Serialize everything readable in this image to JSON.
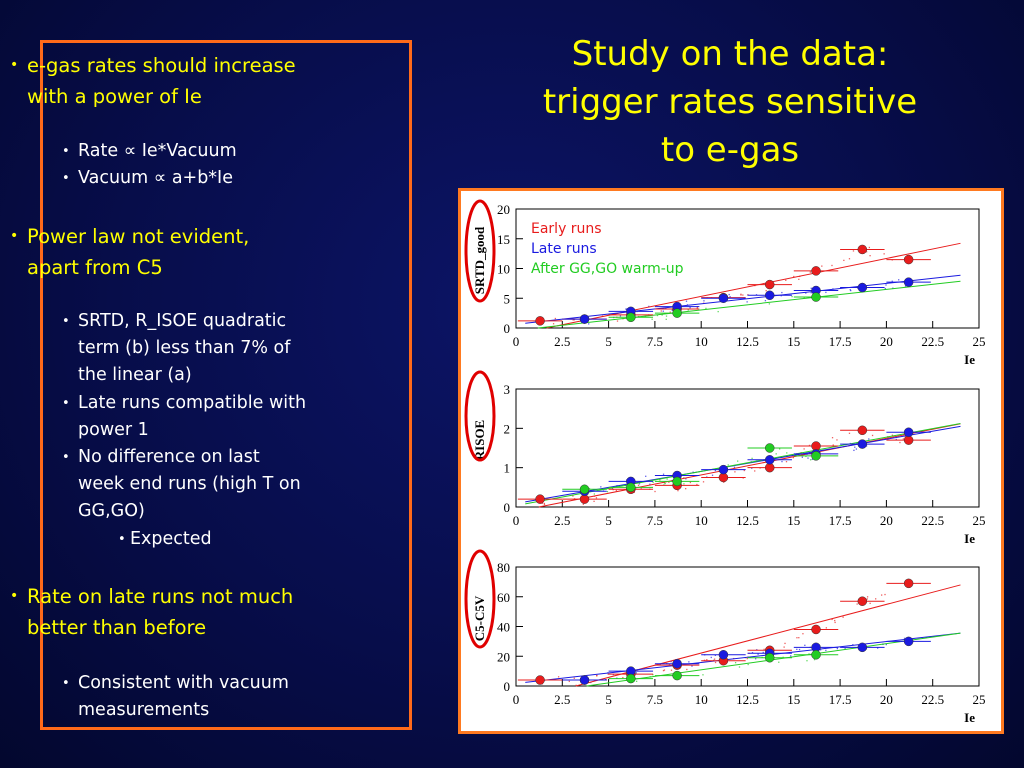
{
  "title": {
    "lines": [
      "Study on the data:",
      "trigger rates sensitive",
      "to e-gas"
    ]
  },
  "bullets": {
    "b1": "e-gas rates should increase",
    "b1_cont": "with a power of Ie",
    "b1_s1": "Rate ∝ Ie*Vacuum",
    "b1_s2": "Vacuum ∝ a+b*Ie",
    "b2": "Power law not evident,",
    "b2_cont": "apart from C5",
    "b2_s1a": "SRTD, R_ISOE quadratic",
    "b2_s1b": "term (b) less than 7% of",
    "b2_s1c": "the linear (a)",
    "b2_s2a": "Late runs compatible with",
    "b2_s2b": "power 1",
    "b2_s3a": "No difference on last",
    "b2_s3b": "week end runs (high T on",
    "b2_s3c": "GG,GO)",
    "b2_s3_sub": "Expected",
    "b3": "Rate on late runs not much",
    "b3_cont": "better than before",
    "b3_s1a": "Consistent with vacuum",
    "b3_s1b": "measurements"
  },
  "colors": {
    "title": "#ffff00",
    "frame": "#ff6a1a",
    "early": "#e81c1c",
    "late": "#1a1ae0",
    "warm": "#22cc22",
    "highlight_circle": "#e00000"
  },
  "chart_data": [
    {
      "type": "scatter",
      "ylabel": "SRTD_good",
      "xlabel": "Ie",
      "xlim": [
        0,
        25
      ],
      "ylim": [
        0,
        20
      ],
      "xticks": [
        0,
        2.5,
        5,
        7.5,
        10,
        12.5,
        15,
        17.5,
        20,
        22.5,
        25
      ],
      "xtick_labels": [
        "0",
        "2.5",
        "5",
        "7.5",
        "10",
        "12.5",
        "15",
        "17.5",
        "20",
        "22.5",
        "25"
      ],
      "yticks": [
        0,
        5,
        10,
        15,
        20
      ],
      "legend": {
        "placement": "top-left",
        "entries": [
          "Early runs",
          "Late runs",
          "After GG,GO warm-up"
        ]
      },
      "series": [
        {
          "name": "Early runs",
          "x": [
            1.3,
            3.7,
            6.2,
            8.7,
            11.2,
            13.7,
            16.2,
            18.7,
            21.2
          ],
          "y": [
            1.2,
            1.5,
            2.2,
            3.2,
            5.1,
            7.3,
            9.6,
            13.2,
            11.5
          ]
        },
        {
          "name": "Late runs",
          "x": [
            3.7,
            6.2,
            8.7,
            11.2,
            13.7,
            16.2,
            18.7,
            21.2
          ],
          "y": [
            1.5,
            2.8,
            3.6,
            5.0,
            5.5,
            6.3,
            6.8,
            7.7
          ]
        },
        {
          "name": "After GG,GO warm-up",
          "x": [
            6.2,
            8.7,
            16.2
          ],
          "y": [
            1.8,
            2.5,
            5.2
          ]
        }
      ]
    },
    {
      "type": "scatter",
      "ylabel": "RISOE",
      "xlabel": "Ie",
      "xlim": [
        0,
        25
      ],
      "ylim": [
        0,
        3
      ],
      "xticks": [
        0,
        2.5,
        5,
        7.5,
        10,
        12.5,
        15,
        17.5,
        20,
        22.5,
        25
      ],
      "xtick_labels": [
        "0",
        "2.5",
        "5",
        "7.5",
        "10",
        "12.5",
        "15",
        "17.5",
        "20",
        "22.5",
        "25"
      ],
      "yticks": [
        0,
        1,
        2,
        3
      ],
      "series": [
        {
          "name": "Early runs",
          "x": [
            1.3,
            3.7,
            6.2,
            8.7,
            11.2,
            13.7,
            16.2,
            18.7,
            21.2
          ],
          "y": [
            0.2,
            0.2,
            0.45,
            0.55,
            0.75,
            1.0,
            1.55,
            1.95,
            1.7
          ]
        },
        {
          "name": "Late runs",
          "x": [
            3.7,
            6.2,
            8.7,
            11.2,
            13.7,
            16.2,
            18.7,
            21.2
          ],
          "y": [
            0.4,
            0.65,
            0.8,
            0.95,
            1.2,
            1.35,
            1.6,
            1.9
          ]
        },
        {
          "name": "After GG,GO warm-up",
          "x": [
            3.7,
            6.2,
            8.7,
            13.7,
            16.2
          ],
          "y": [
            0.45,
            0.5,
            0.65,
            1.5,
            1.3
          ]
        }
      ]
    },
    {
      "type": "scatter",
      "ylabel": "C5-C5V",
      "xlabel": "Ie",
      "xlim": [
        0,
        25
      ],
      "ylim": [
        0,
        80
      ],
      "xticks": [
        0,
        2.5,
        5,
        7.5,
        10,
        12.5,
        15,
        17.5,
        20,
        22.5,
        25
      ],
      "xtick_labels": [
        "0",
        "2.5",
        "5",
        "7.5",
        "10",
        "12.5",
        "15",
        "17.5",
        "20",
        "22.5",
        "25"
      ],
      "yticks": [
        0,
        20,
        40,
        60,
        80
      ],
      "series": [
        {
          "name": "Early runs",
          "x": [
            1.3,
            3.7,
            6.2,
            8.7,
            11.2,
            13.7,
            16.2,
            18.7,
            21.2
          ],
          "y": [
            4,
            4,
            8,
            14,
            17,
            24,
            38,
            57,
            69
          ]
        },
        {
          "name": "Late runs",
          "x": [
            3.7,
            6.2,
            8.7,
            11.2,
            13.7,
            16.2,
            18.7,
            21.2
          ],
          "y": [
            4,
            10,
            15,
            21,
            22,
            26,
            26,
            30
          ]
        },
        {
          "name": "After GG,GO warm-up",
          "x": [
            6.2,
            8.7,
            13.7,
            16.2
          ],
          "y": [
            5,
            7,
            19,
            21
          ]
        }
      ]
    }
  ]
}
